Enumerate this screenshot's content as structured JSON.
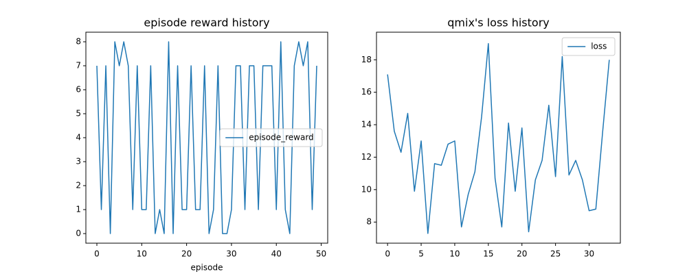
{
  "chart_data": [
    {
      "type": "line",
      "title": "episode reward history",
      "xlabel": "episode",
      "x": [
        0,
        1,
        2,
        3,
        4,
        5,
        6,
        7,
        8,
        9,
        10,
        11,
        12,
        13,
        14,
        15,
        16,
        17,
        18,
        19,
        20,
        21,
        22,
        23,
        24,
        25,
        26,
        27,
        28,
        29,
        30,
        31,
        32,
        33,
        34,
        35,
        36,
        37,
        38,
        39,
        40,
        41,
        42,
        43,
        44,
        45,
        46,
        47,
        48,
        49
      ],
      "series": [
        {
          "name": "episode_reward",
          "color": "#1f77b4",
          "values": [
            7,
            1,
            7,
            0,
            8,
            7,
            8,
            7,
            1,
            7,
            1,
            1,
            7,
            0,
            1,
            0,
            8,
            0,
            7,
            1,
            1,
            7,
            1,
            1,
            7,
            0,
            1,
            7,
            0,
            0,
            1,
            7,
            7,
            1,
            7,
            7,
            1,
            7,
            7,
            7,
            1,
            8,
            1,
            0,
            7,
            8,
            7,
            8,
            1,
            7
          ]
        }
      ],
      "xlim": [
        -2.45,
        51.45
      ],
      "ylim": [
        -0.4,
        8.4
      ],
      "xticks": [
        0,
        10,
        20,
        30,
        40,
        50
      ],
      "yticks": [
        0,
        1,
        2,
        3,
        4,
        5,
        6,
        7,
        8
      ],
      "legend": "center right"
    },
    {
      "type": "line",
      "title": "qmix's loss history",
      "x": [
        0,
        1,
        2,
        3,
        4,
        5,
        6,
        7,
        8,
        9,
        10,
        11,
        12,
        13,
        14,
        15,
        16,
        17,
        18,
        19,
        20,
        21,
        22,
        23,
        24,
        25,
        26,
        27,
        28,
        29,
        30,
        31,
        32,
        33
      ],
      "series": [
        {
          "name": "loss",
          "color": "#1f77b4",
          "values": [
            17.1,
            13.6,
            12.3,
            14.7,
            9.9,
            13.0,
            7.3,
            11.6,
            11.5,
            12.8,
            13.0,
            7.7,
            9.7,
            11.1,
            14.5,
            19.0,
            10.7,
            7.7,
            14.1,
            9.9,
            13.8,
            7.4,
            10.6,
            11.8,
            15.2,
            10.8,
            18.2,
            10.9,
            11.8,
            10.6,
            8.7,
            8.8,
            13.5,
            18.0
          ]
        }
      ],
      "xlim": [
        -1.65,
        34.65
      ],
      "ylim": [
        6.7,
        19.7
      ],
      "xticks": [
        0,
        5,
        10,
        15,
        20,
        25,
        30
      ],
      "yticks": [
        8,
        10,
        12,
        14,
        16,
        18
      ],
      "legend": "upper right"
    }
  ]
}
